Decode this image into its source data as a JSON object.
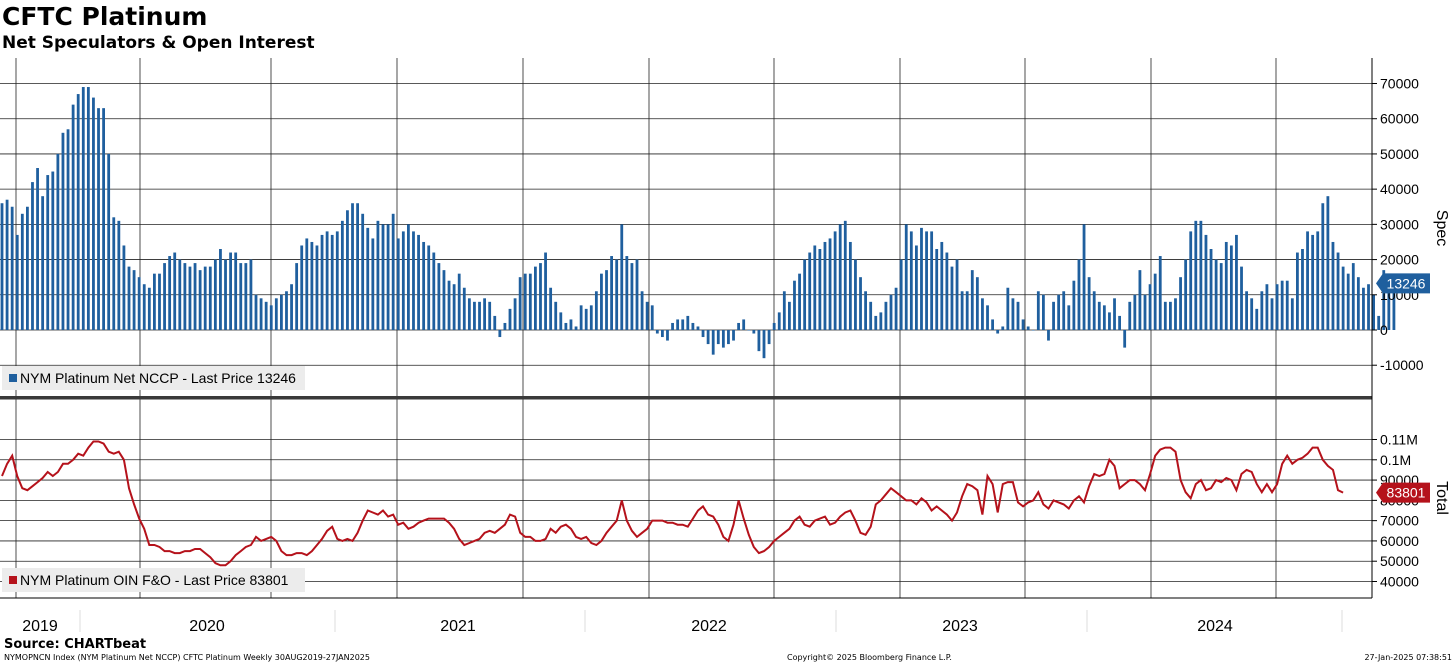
{
  "title": "CFTC Platinum",
  "subtitle": "Net Speculators & Open Interest",
  "source": "Source: CHARTbeat",
  "footer": {
    "left": "NYMOPNCN Index (NYM Platinum Net NCCP) CFTC Platinum  Weekly 30AUG2019-27JAN2025",
    "center": "Copyright© 2025 Bloomberg Finance L.P.",
    "right": "27-Jan-2025 07:38:51"
  },
  "chart_data": [
    {
      "type": "bar",
      "axis_title": "Spec",
      "legend": "NYM Platinum Net NCCP - Last Price 13246",
      "last_value": 13246,
      "last_label": "13246",
      "color": "#1f5f9e",
      "ylim": [
        -18000,
        76000
      ],
      "yticks": [
        -10000,
        0,
        10000,
        20000,
        30000,
        40000,
        50000,
        60000,
        70000
      ],
      "ytick_labels": [
        "-10000",
        "0",
        "10000",
        "20000",
        "30000",
        "40000",
        "50000",
        "60000",
        "70000"
      ],
      "values": [
        36000,
        37000,
        35000,
        27000,
        33000,
        35000,
        42000,
        46000,
        38000,
        44000,
        45000,
        50000,
        56000,
        57000,
        64000,
        67000,
        69000,
        69000,
        66000,
        63000,
        63000,
        50000,
        32000,
        31000,
        24000,
        18000,
        17000,
        15000,
        13000,
        12000,
        16000,
        16000,
        19000,
        21000,
        22000,
        20000,
        19000,
        18000,
        19000,
        17000,
        18000,
        18000,
        20000,
        23000,
        20000,
        22000,
        22000,
        19000,
        19000,
        20000,
        10000,
        9000,
        8000,
        7000,
        9000,
        10000,
        11000,
        13000,
        19000,
        24000,
        26000,
        25000,
        24000,
        27000,
        28000,
        27000,
        28000,
        31000,
        34000,
        36000,
        36000,
        33000,
        29000,
        26000,
        31000,
        30000,
        30000,
        33000,
        26000,
        28000,
        30000,
        28000,
        27000,
        25000,
        24000,
        22000,
        19000,
        17000,
        14000,
        13000,
        16000,
        12000,
        9000,
        8000,
        8000,
        9000,
        8000,
        4000,
        -2000,
        2000,
        6000,
        9000,
        15000,
        16000,
        16000,
        18000,
        19000,
        22000,
        12000,
        8000,
        5000,
        2000,
        3000,
        1000,
        7000,
        6000,
        7000,
        11000,
        16000,
        17000,
        21000,
        20000,
        30000,
        21000,
        19000,
        20000,
        11000,
        8000,
        7000,
        -1000,
        -2000,
        -3000,
        2000,
        3000,
        3000,
        4000,
        2000,
        1000,
        -2000,
        -4000,
        -7000,
        -4000,
        -5000,
        -4000,
        -3000,
        2000,
        3000,
        0,
        -1000,
        -6000,
        -8000,
        -4000,
        2000,
        5000,
        11000,
        8000,
        14000,
        16000,
        20000,
        22000,
        24000,
        23000,
        25000,
        26000,
        28000,
        30000,
        31000,
        25000,
        20000,
        15000,
        11000,
        8000,
        4000,
        5000,
        8000,
        10000,
        12000,
        20000,
        30000,
        28000,
        24000,
        29000,
        28000,
        28000,
        23000,
        25000,
        22000,
        18000,
        20000,
        11000,
        11000,
        17000,
        15000,
        9000,
        7000,
        3000,
        -1000,
        1000,
        12000,
        9000,
        8000,
        3000,
        1000,
        0,
        11000,
        10000,
        -3000,
        8000,
        10000,
        11000,
        7000,
        14000,
        20000,
        30000,
        15000,
        11000,
        8000,
        7000,
        5000,
        9000,
        4000,
        -5000,
        8000,
        10000,
        17000,
        10000,
        13000,
        16000,
        21000,
        8000,
        8000,
        9000,
        15000,
        20000,
        28000,
        31000,
        31000,
        27000,
        23000,
        20000,
        19000,
        25000,
        24000,
        27000,
        18000,
        11000,
        9000,
        6000,
        11000,
        13000,
        9000,
        13000,
        14000,
        14000,
        9000,
        22000,
        23000,
        28000,
        27000,
        28000,
        36000,
        38000,
        25000,
        22000,
        18000,
        16000,
        19000,
        15000,
        12000,
        13000,
        10000,
        4000,
        17000,
        14000,
        13246
      ]
    },
    {
      "type": "line",
      "axis_title": "Total",
      "legend": "NYM Platinum OIN F&O - Last Price 83801",
      "last_value": 83801,
      "last_label": "83801",
      "color": "#b5121b",
      "ylim": [
        35000,
        115000
      ],
      "yticks": [
        40000,
        50000,
        60000,
        70000,
        80000,
        90000,
        100000,
        110000
      ],
      "ytick_labels": [
        "40000",
        "50000",
        "60000",
        "70000",
        "80000",
        "90000",
        "0.1M",
        "0.11M"
      ],
      "values": [
        92000,
        98000,
        102000,
        92000,
        86000,
        85000,
        87000,
        89000,
        91000,
        94000,
        92000,
        94000,
        98000,
        98000,
        100000,
        103000,
        102000,
        106000,
        109000,
        109000,
        108000,
        104000,
        103000,
        104000,
        100000,
        86000,
        78000,
        71000,
        66000,
        58000,
        58000,
        57000,
        55000,
        55000,
        54000,
        54000,
        55000,
        55000,
        56000,
        56000,
        54000,
        52000,
        49000,
        48000,
        48000,
        50000,
        53000,
        55000,
        57000,
        58000,
        62000,
        60000,
        61000,
        62000,
        60000,
        55000,
        53000,
        53000,
        54000,
        54000,
        53000,
        55000,
        58000,
        61000,
        65000,
        67000,
        61000,
        60000,
        61000,
        60000,
        64000,
        70000,
        75000,
        74000,
        73000,
        75000,
        72000,
        73000,
        68000,
        69000,
        66000,
        67000,
        69000,
        70000,
        71000,
        71000,
        71000,
        71000,
        69000,
        66000,
        61000,
        58000,
        59000,
        60000,
        61000,
        64000,
        65000,
        64000,
        66000,
        68000,
        73000,
        72000,
        64000,
        62000,
        62000,
        60000,
        60000,
        61000,
        66000,
        64000,
        67000,
        68000,
        66000,
        62000,
        61000,
        62000,
        59000,
        58000,
        60000,
        64000,
        67000,
        70000,
        80000,
        70000,
        65000,
        62000,
        64000,
        66000,
        70000,
        70000,
        70000,
        69000,
        69000,
        68000,
        68000,
        67000,
        71000,
        75000,
        77000,
        73000,
        72000,
        68000,
        62000,
        60000,
        68000,
        80000,
        71000,
        63000,
        57000,
        54000,
        55000,
        57000,
        60000,
        62000,
        64000,
        66000,
        70000,
        72000,
        68000,
        67000,
        70000,
        71000,
        72000,
        68000,
        69000,
        72000,
        74000,
        75000,
        70000,
        64000,
        63000,
        67000,
        78000,
        80000,
        83000,
        86000,
        84000,
        82000,
        80000,
        80000,
        78000,
        81000,
        79000,
        75000,
        77000,
        75000,
        73000,
        70000,
        74000,
        82000,
        88000,
        87000,
        85000,
        73000,
        92000,
        88000,
        74000,
        88000,
        89000,
        89000,
        79000,
        77000,
        79000,
        80000,
        84000,
        78000,
        76000,
        80000,
        79000,
        78000,
        76000,
        80000,
        82000,
        79000,
        87000,
        93000,
        92000,
        93000,
        100000,
        97000,
        86000,
        88000,
        90000,
        90000,
        88000,
        85000,
        93000,
        102000,
        105000,
        106000,
        106000,
        104000,
        90000,
        84000,
        81000,
        88000,
        90000,
        85000,
        86000,
        90000,
        89000,
        91000,
        90000,
        85000,
        93000,
        95000,
        94000,
        88000,
        84000,
        88000,
        84000,
        88000,
        98000,
        102000,
        98000,
        100000,
        101000,
        103000,
        106000,
        106000,
        100000,
        97000,
        95000,
        85000,
        83801
      ]
    }
  ],
  "x_axis": {
    "year_labels": [
      "2019",
      "2020",
      "2021",
      "2022",
      "2023",
      "2024"
    ]
  }
}
